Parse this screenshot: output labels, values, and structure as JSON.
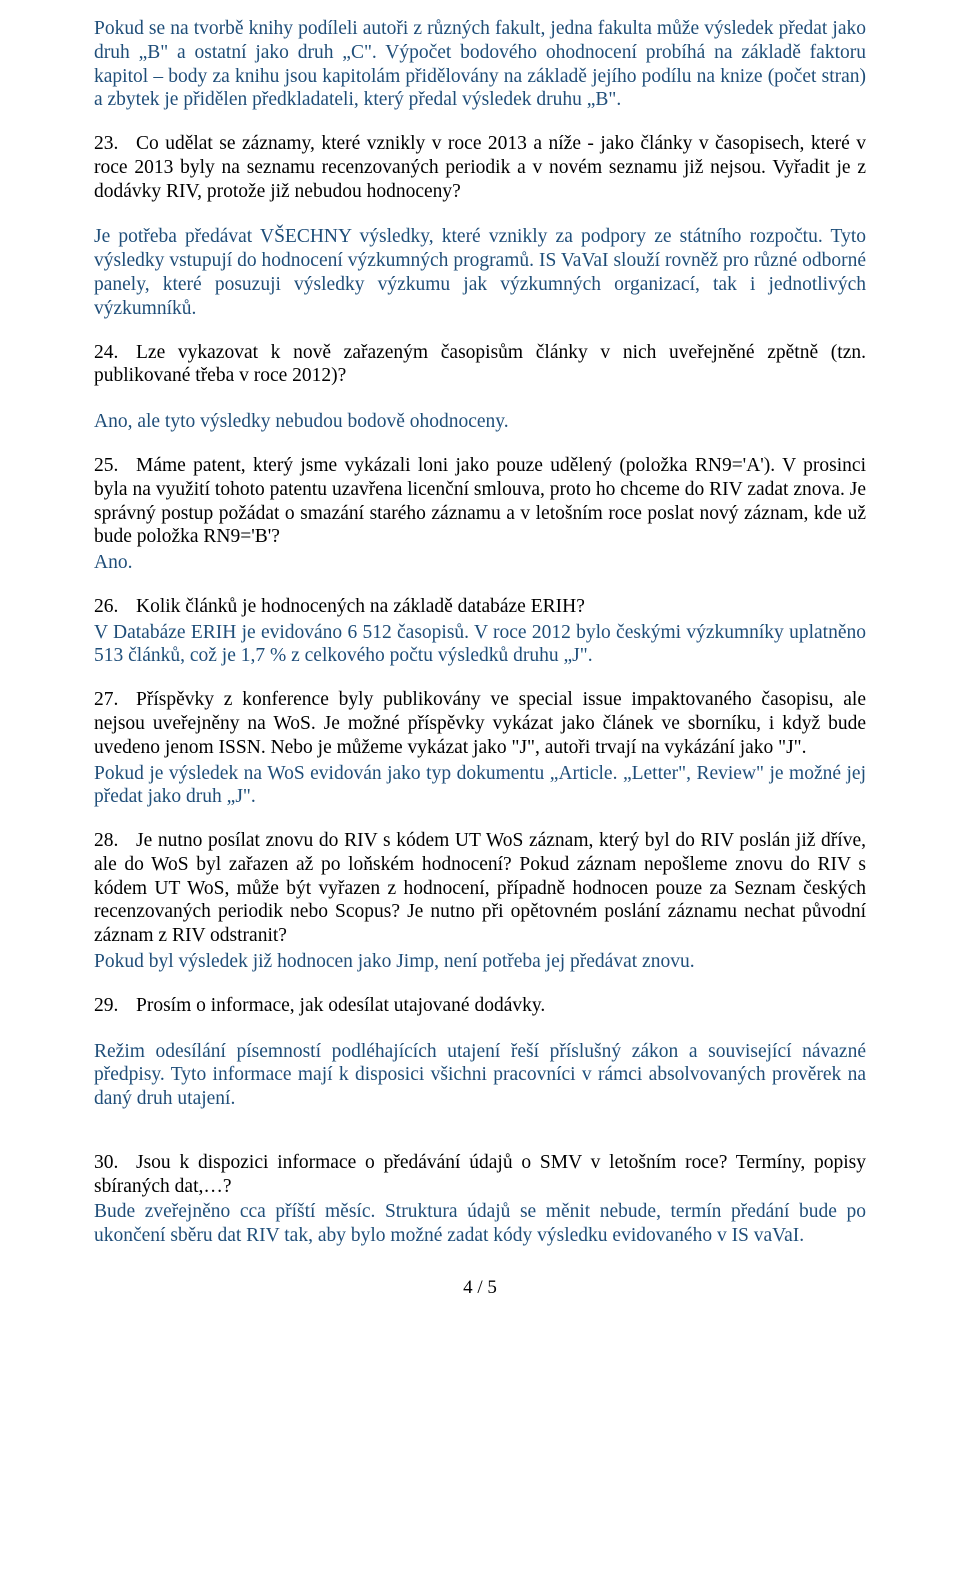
{
  "p1": "Pokud se na tvorbě knihy podíleli autoři z různých fakult, jedna fakulta může výsledek předat jako druh „B\" a ostatní jako druh „C\". Výpočet bodového ohodnocení probíhá na základě faktoru kapitol – body za knihu jsou kapitolám přidělovány na základě jejího podílu na knize (počet stran) a zbytek je přidělen předkladateli, který předal výsledek druhu „B\".",
  "q23_num": "23.",
  "q23": "Co udělat se záznamy, které vznikly v roce 2013 a níže - jako články v časopisech, které v roce 2013 byly na seznamu recenzovaných periodik a v novém seznamu již nejsou. Vyřadit je z dodávky RIV, protože již nebudou hodnoceny?",
  "a23": "Je potřeba předávat VŠECHNY výsledky, které vznikly za podpory ze státního rozpočtu. Tyto výsledky vstupují do hodnocení výzkumných programů. IS VaVaI slouží rovněž pro různé odborné panely, které posuzuji výsledky výzkumu jak výzkumných organizací, tak i jednotlivých výzkumníků.",
  "q24_num": "24.",
  "q24": "Lze vykazovat k nově zařazeným časopisům články v nich uveřejněné zpětně (tzn. publikované třeba v roce 2012)?",
  "a24": "Ano, ale tyto výsledky nebudou bodově ohodnoceny.",
  "q25_num": "25.",
  "q25": "Máme patent, který jsme vykázali loni jako pouze udělený (položka RN9='A'). V prosinci byla na využití tohoto patentu uzavřena licenční smlouva, proto ho chceme do RIV zadat znova. Je správný postup požádat o smazání starého záznamu a v letošním roce poslat nový záznam, kde už bude položka RN9='B'?",
  "a25": "Ano.",
  "q26_num": "26.",
  "q26": "Kolik článků je hodnocených na základě databáze ERIH?",
  "a26": "V Databáze ERIH je evidováno 6 512 časopisů. V roce 2012 bylo českými výzkumníky uplatněno 513 článků, což je 1,7 % z celkového počtu výsledků druhu „J\".",
  "q27_num": "27.",
  "q27": "Příspěvky z konference byly publikovány ve special issue impaktovaného časopisu, ale nejsou uveřejněny na WoS. Je možné příspěvky vykázat jako článek ve sborníku, i když bude uvedeno jenom ISSN. Nebo je můžeme vykázat jako \"J\", autoři trvají na vykázání jako \"J\".",
  "a27": "Pokud je výsledek na WoS evidován jako typ dokumentu „Article. „Letter\", Review\" je možné jej předat jako druh „J\".",
  "q28_num": "28.",
  "q28": "Je nutno posílat znovu do RIV s kódem UT WoS záznam, který byl do RIV poslán již dříve, ale do WoS byl zařazen až po loňském hodnocení? Pokud záznam nepošleme znovu do RIV s kódem UT WoS, může být vyřazen z hodnocení, případně hodnocen pouze za Seznam českých recenzovaných periodik nebo Scopus? Je nutno při opětovném poslání záznamu nechat původní záznam z RIV odstranit?",
  "a28": "Pokud byl výsledek již hodnocen jako Jimp, není potřeba jej předávat znovu.",
  "q29_num": "29.",
  "q29": "Prosím o informace, jak odesílat utajované dodávky.",
  "a29": "Režim odesílání písemností podléhajících utajení řeší příslušný zákon a související návazné předpisy. Tyto informace mají k disposici všichni pracovníci v rámci absolvovaných prověrek na daný druh utajení.",
  "q30_num": "30.",
  "q30": "Jsou k dispozici informace o předávání údajů o SMV v letošním roce? Termíny, popisy sbíraných dat,…?",
  "a30": "Bude zveřejněno cca příští měsíc. Struktura údajů se měnit nebude, termín předání bude po ukončení sběru dat RIV tak, aby bylo možné zadat kódy výsledku evidovaného v IS vaVaI.",
  "footer": "4 / 5"
}
